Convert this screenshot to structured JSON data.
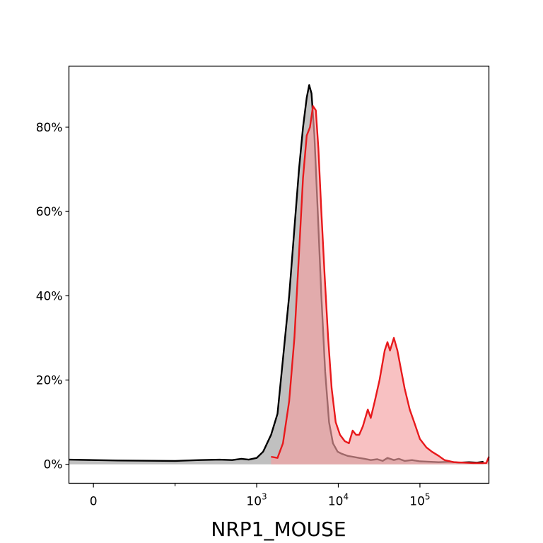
{
  "chart_data": {
    "type": "area",
    "title": "",
    "xlabel": "NRP1_MOUSE",
    "ylabel": "",
    "x_scale": "symlog",
    "xlim": [
      -30,
      700000
    ],
    "ylim": [
      -0.045,
      0.945
    ],
    "grid": false,
    "legend": "none",
    "x_ticks": [
      {
        "value": 0,
        "label": "0"
      },
      {
        "value": 1000,
        "label": "10",
        "exp": "3"
      },
      {
        "value": 10000,
        "label": "10",
        "exp": "4"
      },
      {
        "value": 100000,
        "label": "10",
        "exp": "5"
      }
    ],
    "x_minor_ticks": [
      100
    ],
    "y_ticks": [
      {
        "value": 0,
        "label": "0%"
      },
      {
        "value": 0.2,
        "label": "20%"
      },
      {
        "value": 0.4,
        "label": "40%"
      },
      {
        "value": 0.6,
        "label": "60%"
      },
      {
        "value": 0.8,
        "label": "80%"
      }
    ],
    "series": [
      {
        "color": "#000000",
        "fill": "#bdbdbd",
        "fill_opacity": 0.95,
        "points": [
          [
            -30,
            0.011
          ],
          [
            0,
            0.01
          ],
          [
            30,
            0.009
          ],
          [
            100,
            0.008
          ],
          [
            200,
            0.01
          ],
          [
            350,
            0.011
          ],
          [
            500,
            0.01
          ],
          [
            650,
            0.013
          ],
          [
            800,
            0.011
          ],
          [
            1000,
            0.015
          ],
          [
            1200,
            0.03
          ],
          [
            1500,
            0.07
          ],
          [
            1800,
            0.12
          ],
          [
            2100,
            0.25
          ],
          [
            2500,
            0.4
          ],
          [
            2900,
            0.56
          ],
          [
            3300,
            0.7
          ],
          [
            3700,
            0.8
          ],
          [
            4100,
            0.87
          ],
          [
            4400,
            0.9
          ],
          [
            4700,
            0.88
          ],
          [
            5100,
            0.78
          ],
          [
            5600,
            0.6
          ],
          [
            6200,
            0.4
          ],
          [
            6900,
            0.22
          ],
          [
            7700,
            0.1
          ],
          [
            8600,
            0.05
          ],
          [
            9800,
            0.03
          ],
          [
            11000,
            0.025
          ],
          [
            13000,
            0.02
          ],
          [
            15000,
            0.018
          ],
          [
            18000,
            0.015
          ],
          [
            21000,
            0.013
          ],
          [
            25000,
            0.01
          ],
          [
            30000,
            0.012
          ],
          [
            35000,
            0.008
          ],
          [
            40000,
            0.015
          ],
          [
            48000,
            0.01
          ],
          [
            55000,
            0.013
          ],
          [
            65000,
            0.008
          ],
          [
            80000,
            0.01
          ],
          [
            100000,
            0.007
          ],
          [
            130000,
            0.006
          ],
          [
            170000,
            0.005
          ],
          [
            230000,
            0.006
          ],
          [
            300000,
            0.004
          ],
          [
            400000,
            0.005
          ],
          [
            500000,
            0.004
          ],
          [
            600000,
            0.006
          ]
        ]
      },
      {
        "color": "#e8191c",
        "fill": "#f4a0a2",
        "fill_opacity": 0.65,
        "points": [
          [
            1500,
            0.018
          ],
          [
            1800,
            0.015
          ],
          [
            2100,
            0.05
          ],
          [
            2500,
            0.15
          ],
          [
            2900,
            0.3
          ],
          [
            3300,
            0.5
          ],
          [
            3700,
            0.68
          ],
          [
            4100,
            0.78
          ],
          [
            4500,
            0.8
          ],
          [
            4900,
            0.85
          ],
          [
            5300,
            0.84
          ],
          [
            5700,
            0.75
          ],
          [
            6200,
            0.6
          ],
          [
            6800,
            0.45
          ],
          [
            7500,
            0.3
          ],
          [
            8300,
            0.18
          ],
          [
            9300,
            0.1
          ],
          [
            10500,
            0.07
          ],
          [
            12000,
            0.055
          ],
          [
            13500,
            0.05
          ],
          [
            15000,
            0.08
          ],
          [
            16500,
            0.07
          ],
          [
            18000,
            0.07
          ],
          [
            20000,
            0.09
          ],
          [
            23000,
            0.13
          ],
          [
            25000,
            0.11
          ],
          [
            28000,
            0.15
          ],
          [
            32000,
            0.2
          ],
          [
            37000,
            0.27
          ],
          [
            40000,
            0.29
          ],
          [
            43000,
            0.27
          ],
          [
            48000,
            0.3
          ],
          [
            53000,
            0.27
          ],
          [
            58000,
            0.23
          ],
          [
            65000,
            0.18
          ],
          [
            75000,
            0.13
          ],
          [
            85000,
            0.1
          ],
          [
            100000,
            0.06
          ],
          [
            120000,
            0.04
          ],
          [
            140000,
            0.03
          ],
          [
            170000,
            0.02
          ],
          [
            200000,
            0.01
          ],
          [
            260000,
            0.005
          ],
          [
            350000,
            0.004
          ],
          [
            450000,
            0.003
          ],
          [
            550000,
            0.003
          ],
          [
            650000,
            0.003
          ],
          [
            700000,
            0.018
          ]
        ]
      }
    ]
  }
}
